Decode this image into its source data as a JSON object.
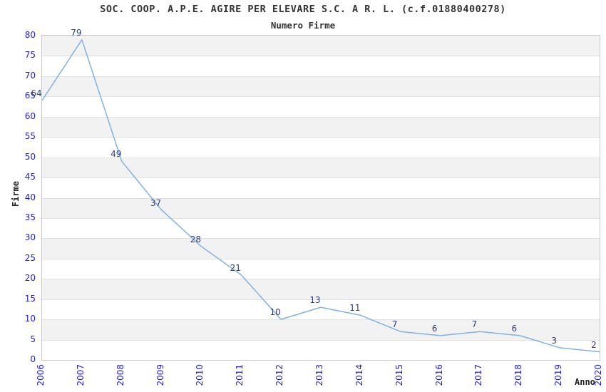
{
  "chart_data": {
    "type": "line",
    "title": "SOC. COOP. A.P.E. AGIRE PER ELEVARE S.C. A R. L. (c.f.01880400278)",
    "subtitle": "Numero Firme",
    "xlabel": "Anno",
    "ylabel": "Firme",
    "categories": [
      "2006",
      "2007",
      "2008",
      "2009",
      "2010",
      "2011",
      "2012",
      "2013",
      "2014",
      "2015",
      "2016",
      "2017",
      "2018",
      "2019",
      "2020"
    ],
    "values": [
      64,
      79,
      49,
      37,
      28,
      21,
      10,
      13,
      11,
      7,
      6,
      7,
      6,
      3,
      2
    ],
    "ylim": [
      0,
      80
    ],
    "ytick_step": 5,
    "grid": "horizontal-gridlines-with-alternating-shaded-bands",
    "legend": "none",
    "colors": {
      "line": "#7fb2e5",
      "tick_label": "#1f1fd1",
      "data_label": "#2e3f72",
      "band": "#f2f2f2",
      "gridline": "#e0e0e0",
      "axis_border": "#c9c9c9",
      "heading": "#333333"
    }
  }
}
